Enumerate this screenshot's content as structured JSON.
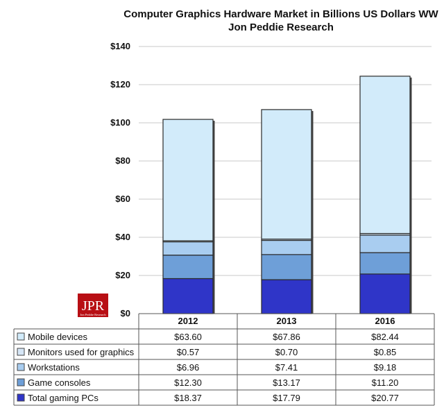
{
  "chart_data": {
    "type": "bar",
    "stacked": true,
    "title": [
      "Computer Graphics Hardware Market in Billions US Dollars WW",
      "Jon Peddie Research"
    ],
    "categories": [
      "2012",
      "2013",
      "2016"
    ],
    "ylim": [
      0,
      140
    ],
    "yticks": [
      "$0",
      "$20",
      "$40",
      "$60",
      "$80",
      "$100",
      "$120",
      "$140"
    ],
    "grid": true,
    "legend": "table-below",
    "series": [
      {
        "name": "Total gaming PCs",
        "values": [
          18.37,
          17.79,
          20.77
        ],
        "labels": [
          "$18.37",
          "$17.79",
          "$20.77"
        ],
        "color": "#2f35c8"
      },
      {
        "name": "Game consoles",
        "values": [
          12.3,
          13.17,
          11.2
        ],
        "labels": [
          "$12.30",
          "$13.17",
          "$11.20"
        ],
        "color": "#6e9fd8"
      },
      {
        "name": "Workstations",
        "values": [
          6.96,
          7.41,
          9.18
        ],
        "labels": [
          "$6.96",
          "$7.41",
          "$9.18"
        ],
        "color": "#a9cdf0"
      },
      {
        "name": "Monitors used for graphics",
        "values": [
          0.57,
          0.7,
          0.85
        ],
        "labels": [
          "$0.57",
          "$0.70",
          "$0.85"
        ],
        "color": "#d6e6f6"
      },
      {
        "name": "Mobile devices",
        "values": [
          63.6,
          67.86,
          82.44
        ],
        "labels": [
          "$63.60",
          "$67.86",
          "$82.44"
        ],
        "color": "#d2ebfa"
      }
    ],
    "table_row_order": [
      "Mobile devices",
      "Monitors used for graphics",
      "Workstations",
      "Game consoles",
      "Total gaming PCs"
    ]
  },
  "logo": {
    "text": "JPR",
    "subtext": "Jon Peddie Research",
    "color": "#b80f14"
  }
}
